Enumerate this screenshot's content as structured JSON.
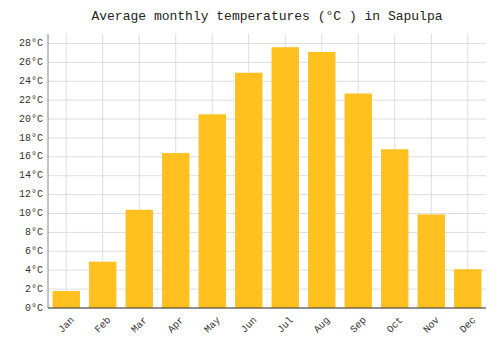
{
  "chart_data": {
    "type": "bar",
    "title": "Average monthly temperatures (°C ) in Sapulpa",
    "categories": [
      "Jan",
      "Feb",
      "Mar",
      "Apr",
      "May",
      "Jun",
      "Jul",
      "Aug",
      "Sep",
      "Oct",
      "Nov",
      "Dec"
    ],
    "values": [
      1.8,
      4.9,
      10.4,
      16.4,
      20.5,
      24.9,
      27.6,
      27.1,
      22.7,
      16.8,
      9.9,
      4.1
    ],
    "color": "#FFC020",
    "ylim": [
      0,
      29
    ],
    "yticks": [
      {
        "value": 0,
        "label": "0°C"
      },
      {
        "value": 2,
        "label": "2°C"
      },
      {
        "value": 4,
        "label": "4°C"
      },
      {
        "value": 6,
        "label": "6°C"
      },
      {
        "value": 8,
        "label": "8°C"
      },
      {
        "value": 10,
        "label": "10°C"
      },
      {
        "value": 12,
        "label": "12°C"
      },
      {
        "value": 14,
        "label": "14°C"
      },
      {
        "value": 16,
        "label": "16°C"
      },
      {
        "value": 18,
        "label": "18°C"
      },
      {
        "value": 20,
        "label": "20°C"
      },
      {
        "value": 22,
        "label": "22°C"
      },
      {
        "value": 24,
        "label": "24°C"
      },
      {
        "value": 26,
        "label": "26°C"
      },
      {
        "value": 28,
        "label": "28°C"
      }
    ],
    "grid": true
  }
}
